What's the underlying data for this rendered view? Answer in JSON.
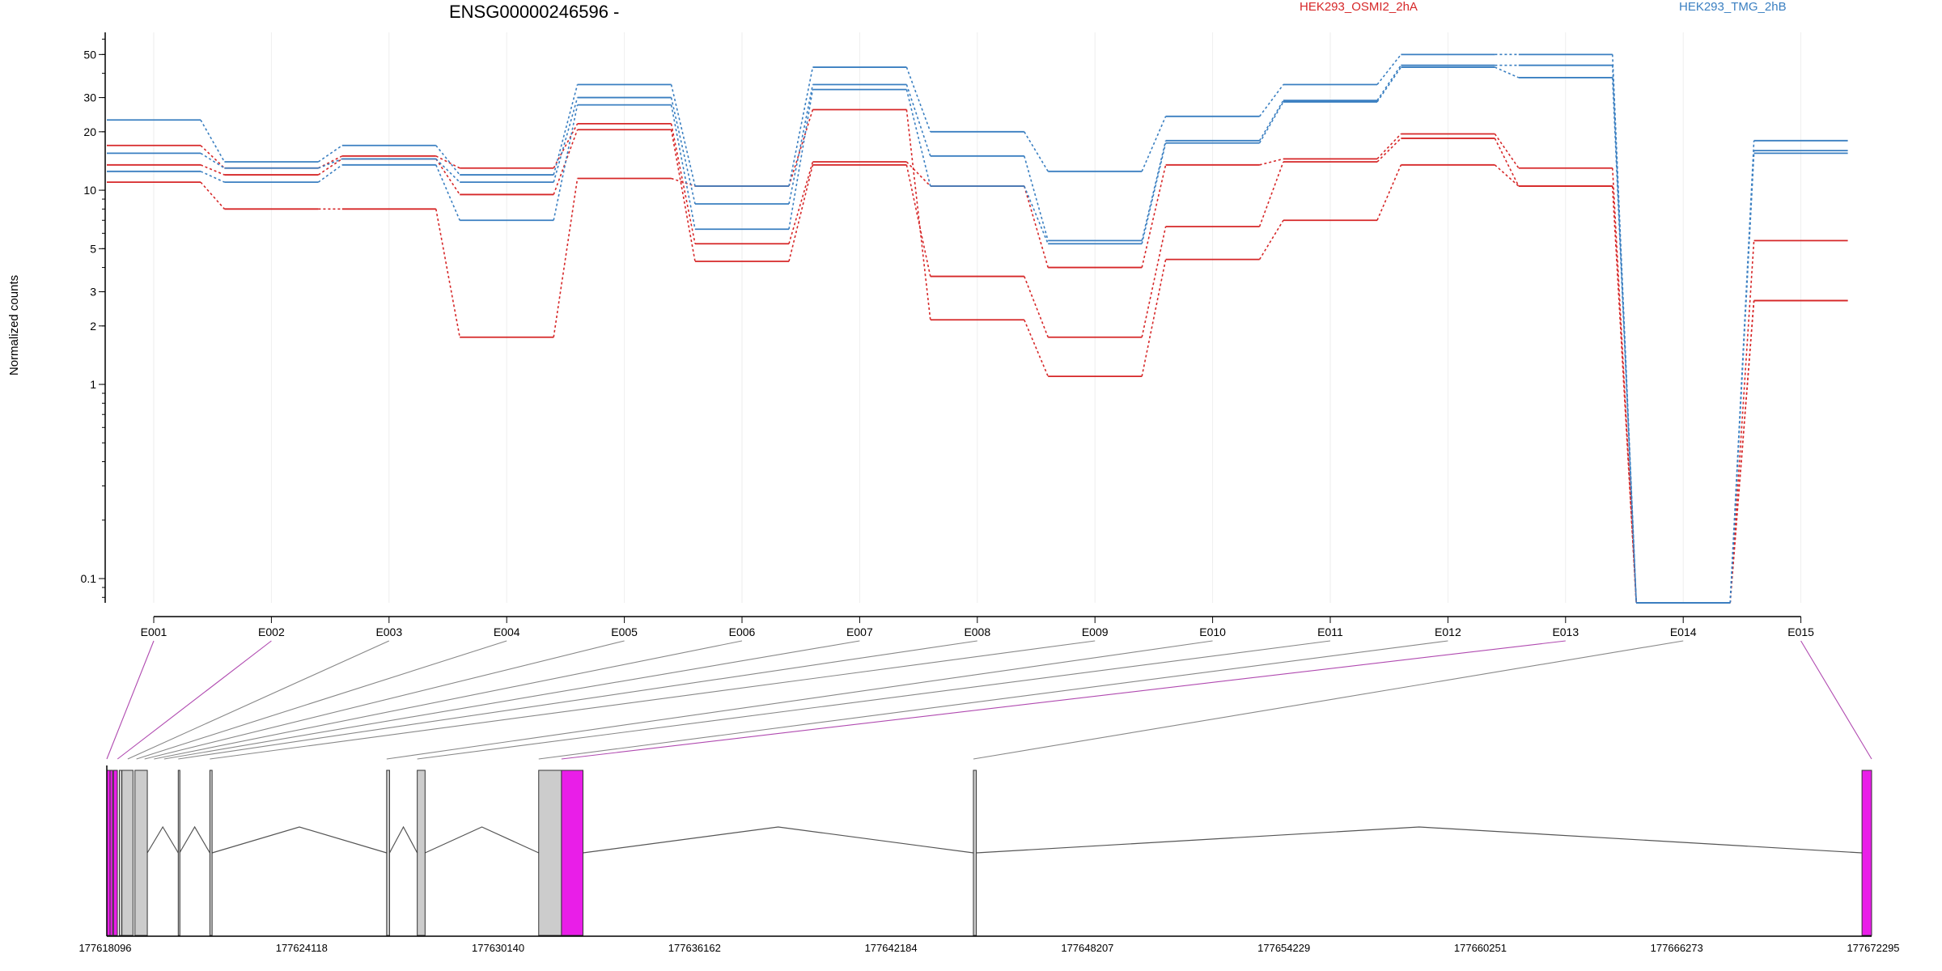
{
  "title": "ENSG00000246596 -",
  "colors": {
    "groupA": "#d62728",
    "groupB": "#3a7fc1",
    "highlight": "#e91ee8",
    "exonGray": "#cccccc",
    "connector": "#888888",
    "connectorHighlight": "#b04ab0"
  },
  "chart_data": {
    "type": "line",
    "title": "ENSG00000246596 -",
    "ylabel": "Normalized counts",
    "xlabel": "",
    "yscale": "log",
    "ylim": [
      0.075,
      65
    ],
    "yticks": [
      "0.1",
      "1",
      "2",
      "3",
      "5",
      "10",
      "20",
      "30",
      "50"
    ],
    "categories": [
      "E001",
      "E002",
      "E003",
      "E004",
      "E005",
      "E006",
      "E007",
      "E008",
      "E009",
      "E010",
      "E011",
      "E012",
      "E013",
      "E014",
      "E015"
    ],
    "legend": [
      {
        "name": "HEK293_OSMI2_2hA",
        "color": "#d62728"
      },
      {
        "name": "HEK293_TMG_2hB",
        "color": "#3a7fc1"
      }
    ],
    "series": [
      {
        "group": "HEK293_OSMI2_2hA",
        "values": [
          17.0,
          13.0,
          15.0,
          13.0,
          22.0,
          5.3,
          14.0,
          10.5,
          4.0,
          13.5,
          14.5,
          19.5,
          13.0,
          0.075,
          5.5
        ]
      },
      {
        "group": "HEK293_OSMI2_2hA",
        "values": [
          13.5,
          12.0,
          14.5,
          9.5,
          20.5,
          4.3,
          13.5,
          3.6,
          1.75,
          6.5,
          14.0,
          18.5,
          10.5,
          0.075,
          2.7
        ]
      },
      {
        "group": "HEK293_OSMI2_2hA",
        "values": [
          11.0,
          8.0,
          8.0,
          1.75,
          11.5,
          10.5,
          26.0,
          2.15,
          1.1,
          4.4,
          7.0,
          13.5,
          10.5,
          0.075,
          2.7
        ]
      },
      {
        "group": "HEK293_TMG_2hB",
        "values": [
          23.0,
          14.0,
          17.0,
          12.0,
          35.0,
          10.5,
          43.0,
          20.0,
          12.5,
          24.0,
          35.0,
          50.0,
          50.0,
          0.075,
          18.0
        ]
      },
      {
        "group": "HEK293_TMG_2hB",
        "values": [
          15.5,
          13.0,
          14.5,
          11.0,
          30.0,
          8.5,
          35.0,
          15.0,
          5.5,
          18.0,
          29.0,
          44.0,
          44.0,
          0.075,
          16.0
        ]
      },
      {
        "group": "HEK293_TMG_2hB",
        "values": [
          12.5,
          11.0,
          13.5,
          7.0,
          27.5,
          6.3,
          33.0,
          10.5,
          5.3,
          17.5,
          28.5,
          43.0,
          38.0,
          0.075,
          15.5
        ]
      }
    ],
    "genomic_axis": {
      "ticks": [
        "177618096",
        "177624118",
        "177630140",
        "177636162",
        "177642184",
        "177648207",
        "177654229",
        "177660251",
        "177666273",
        "177672295"
      ],
      "start": 177618096,
      "end": 177672295
    },
    "exons": [
      {
        "start": 177618096,
        "end": 177618196,
        "highlight": true
      },
      {
        "start": 177618196,
        "end": 177618276,
        "highlight": true
      },
      {
        "start": 177618300,
        "end": 177618420,
        "highlight": true
      },
      {
        "start": 177618480,
        "end": 177618560,
        "highlight": false
      },
      {
        "start": 177618560,
        "end": 177618900,
        "highlight": false
      },
      {
        "start": 177618960,
        "end": 177619340,
        "highlight": false
      },
      {
        "start": 177620290,
        "end": 177620330,
        "highlight": false
      },
      {
        "start": 177621260,
        "end": 177621330,
        "highlight": false
      },
      {
        "start": 177626690,
        "end": 177626780,
        "highlight": false
      },
      {
        "start": 177627630,
        "end": 177627870,
        "highlight": false
      },
      {
        "start": 177631360,
        "end": 177632060,
        "highlight": false
      },
      {
        "start": 177632060,
        "end": 177632720,
        "highlight": true
      },
      {
        "start": 177644710,
        "end": 177644800,
        "highlight": false
      },
      {
        "start": 177672000,
        "end": 177672295,
        "highlight": true
      }
    ],
    "bin_links": [
      {
        "bin": "E001",
        "pos": 177618096,
        "highlight": true
      },
      {
        "bin": "E002",
        "pos": 177618276,
        "highlight": true
      },
      {
        "bin": "E003",
        "pos": 177618440,
        "highlight": false
      },
      {
        "bin": "E004",
        "pos": 177618560,
        "highlight": false
      },
      {
        "bin": "E005",
        "pos": 177618660,
        "highlight": false
      },
      {
        "bin": "E006",
        "pos": 177618800,
        "highlight": false
      },
      {
        "bin": "E007",
        "pos": 177618960,
        "highlight": false
      },
      {
        "bin": "E008",
        "pos": 177620290,
        "highlight": false
      },
      {
        "bin": "E009",
        "pos": 177621260,
        "highlight": false
      },
      {
        "bin": "E010",
        "pos": 177626690,
        "highlight": false
      },
      {
        "bin": "E011",
        "pos": 177627630,
        "highlight": false
      },
      {
        "bin": "E012",
        "pos": 177631360,
        "highlight": false
      },
      {
        "bin": "E013",
        "pos": 177632060,
        "highlight": true
      },
      {
        "bin": "E014",
        "pos": 177644710,
        "highlight": false
      },
      {
        "bin": "E015",
        "pos": 177672295,
        "highlight": true
      }
    ],
    "junctions": [
      {
        "from": 177619340,
        "to": 177620290
      },
      {
        "from": 177620330,
        "to": 177621260
      },
      {
        "from": 177621330,
        "to": 177626690
      },
      {
        "from": 177626780,
        "to": 177627630
      },
      {
        "from": 177627870,
        "to": 177631360
      },
      {
        "from": 177632720,
        "to": 177644710
      },
      {
        "from": 177644800,
        "to": 177672000
      }
    ]
  }
}
